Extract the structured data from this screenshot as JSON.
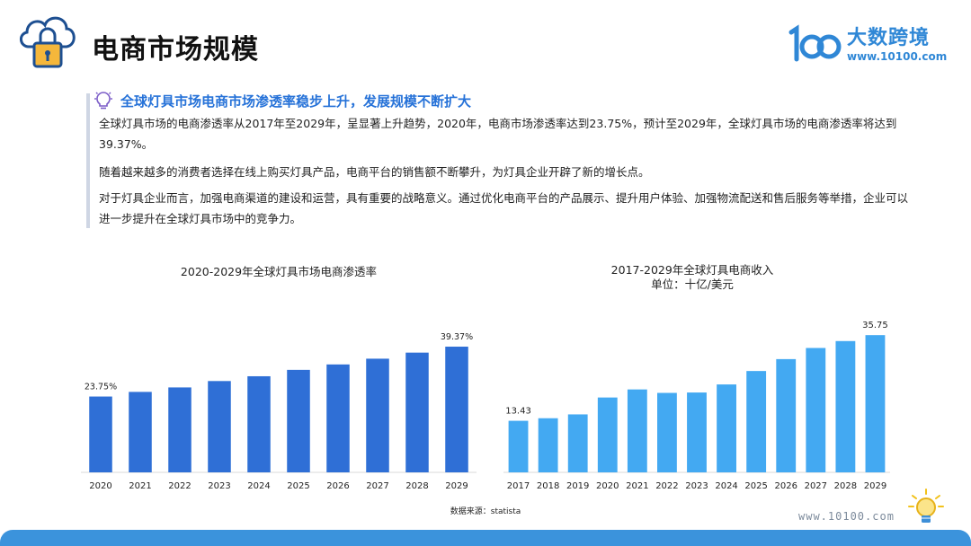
{
  "header": {
    "title": "电商市场规模",
    "brand_name": "大数跨境",
    "brand_url": "www.10100.com",
    "icon": "cloud-lock-icon",
    "accent_color": "#2f87d6"
  },
  "content": {
    "subtitle": "全球灯具市场电商市场渗透率稳步上升，发展规模不断扩大",
    "paragraphs": [
      "全球灯具市场的电商渗透率从2017年至2029年，呈显著上升趋势，2020年，电商市场渗透率达到23.75%，预计至2029年，全球灯具市场的电商渗透率将达到39.37%。",
      "随着越来越多的消费者选择在线上购买灯具产品，电商平台的销售额不断攀升，为灯具企业开辟了新的增长点。",
      "对于灯具企业而言，加强电商渠道的建设和运营，具有重要的战略意义。通过优化电商平台的产品展示、提升用户体验、加强物流配送和售后服务等举措，企业可以进一步提升在全球灯具市场中的竞争力。"
    ],
    "subtitle_color": "#2672d8"
  },
  "chart_data": [
    {
      "type": "bar",
      "title": "2020-2029年全球灯具市场电商渗透率",
      "categories": [
        "2020",
        "2021",
        "2022",
        "2023",
        "2024",
        "2025",
        "2026",
        "2027",
        "2028",
        "2029"
      ],
      "values": [
        23.75,
        25.2,
        26.6,
        28.6,
        30.1,
        32.1,
        33.8,
        35.6,
        37.5,
        39.37
      ],
      "unit": "%",
      "data_labels": {
        "first": "23.75%",
        "last": "39.37%"
      },
      "ylim": [
        0,
        45
      ],
      "color": "#2f6fd6",
      "grid": false
    },
    {
      "type": "bar",
      "title": "2017-2029年全球灯具电商收入",
      "subtitle": "单位：十亿/美元",
      "categories": [
        "2017",
        "2018",
        "2019",
        "2020",
        "2021",
        "2022",
        "2023",
        "2024",
        "2025",
        "2026",
        "2027",
        "2028",
        "2029"
      ],
      "values": [
        13.43,
        14.1,
        15.1,
        19.5,
        21.6,
        20.7,
        20.8,
        22.9,
        26.4,
        29.5,
        32.4,
        34.2,
        35.75
      ],
      "data_labels": {
        "first": "13.43",
        "last": "35.75"
      },
      "ylim": [
        0,
        40
      ],
      "color": "#43a9f2",
      "grid": false
    }
  ],
  "footer": {
    "source": "数据来源：statista",
    "url": "www.10100.com",
    "bar_color": "#3b93dc"
  }
}
